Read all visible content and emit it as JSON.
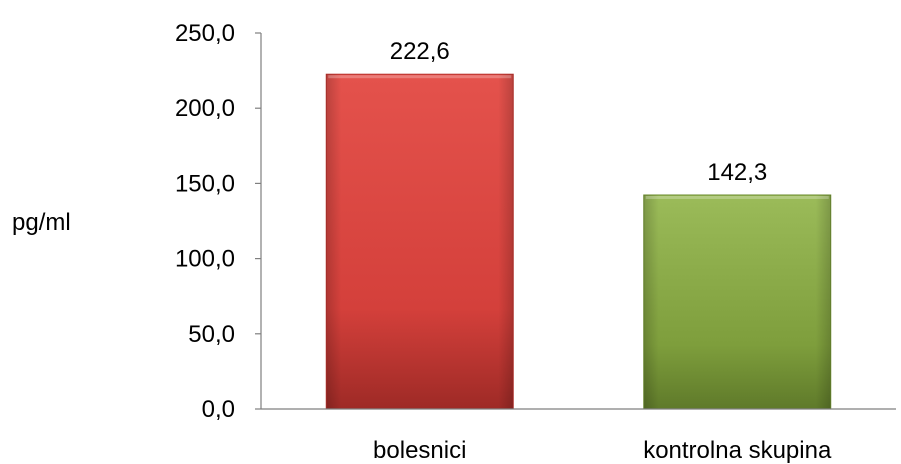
{
  "chart_data": {
    "type": "bar",
    "title": "",
    "xlabel": "",
    "ylabel": "pg/ml",
    "categories": [
      "bolesnici",
      "kontrolna skupina"
    ],
    "values": [
      222.6,
      142.3
    ],
    "value_labels": [
      "222,6",
      "142,3"
    ],
    "ylim": [
      0,
      250
    ],
    "yticks": [
      0,
      50,
      100,
      150,
      200,
      250
    ],
    "ytick_labels": [
      "0,0",
      "50,0",
      "100,0",
      "150,0",
      "200,0",
      "250,0"
    ],
    "grid": false,
    "legend": "none",
    "colors": {
      "bolesnici": {
        "light": "#e4524c",
        "base": "#d4403b",
        "dark": "#9e2a26",
        "edge": "#b8322d"
      },
      "kontrolna skupina": {
        "light": "#9bbb59",
        "base": "#7e9e3c",
        "dark": "#5f7a2a",
        "edge": "#6d8c30"
      },
      "axis": "#7f7f7f"
    }
  }
}
